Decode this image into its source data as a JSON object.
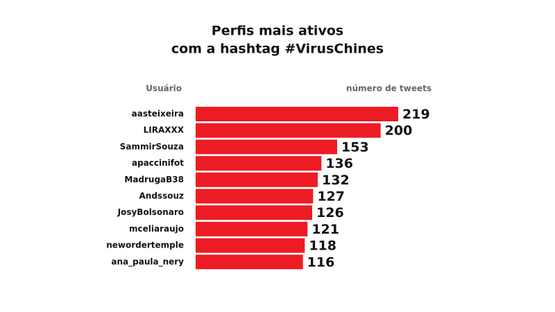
{
  "chart_data": {
    "type": "hbar",
    "title": [
      "Perfis mais ativos",
      "com a hashtag #VirusChines"
    ],
    "y_label": "Usuário",
    "x_label": "número de tweets",
    "categories": [
      "aasteixeira",
      "LIRAXXX",
      "SammirSouza",
      "apaccinifot",
      "MadrugaB38",
      "Andssouz",
      "JosyBolsonaro",
      "mceliaraujo",
      "newordertemple",
      "ana_paula_nery"
    ],
    "values": [
      219,
      200,
      153,
      136,
      132,
      127,
      126,
      121,
      118,
      116
    ],
    "color": "#ed1c24",
    "xlim": [
      0,
      300
    ]
  }
}
